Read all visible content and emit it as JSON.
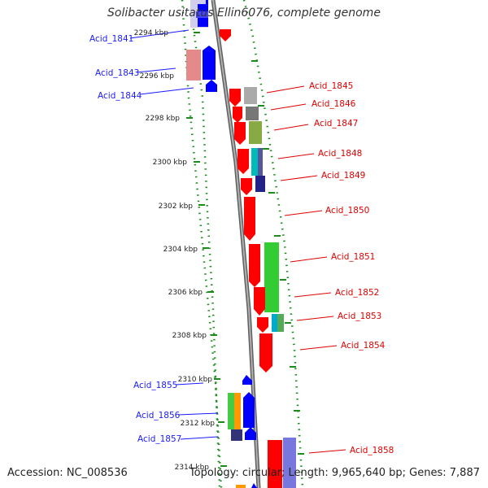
{
  "title": "Solibacter usitatus Ellin6076, complete genome",
  "accession_line": "Accession: NC_008536",
  "summary_line": "Topology: circular; Length: 9,965,640 bp; Genes: 7,887",
  "colors": {
    "left_label": "#1a1aff",
    "right_label": "#e00000",
    "backbone": "#808080",
    "tick": "#1a8c1a",
    "forward_gene": "#0000ff",
    "reverse_gene": "#ff0000"
  },
  "kbp_ticks": [
    "2294 kbp",
    "2296 kbp",
    "2298 kbp",
    "2300 kbp",
    "2302 kbp",
    "2304 kbp",
    "2306 kbp",
    "2308 kbp",
    "2310 kbp",
    "2312 kbp",
    "2314 kbp"
  ],
  "left_genes": [
    {
      "label": "Acid_1841"
    },
    {
      "label": "Acid_1843"
    },
    {
      "label": "Acid_1844"
    },
    {
      "label": "Acid_1855"
    },
    {
      "label": "Acid_1856"
    },
    {
      "label": "Acid_1857"
    }
  ],
  "right_genes": [
    {
      "label": "Acid_1845"
    },
    {
      "label": "Acid_1846"
    },
    {
      "label": "Acid_1847"
    },
    {
      "label": "Acid_1848"
    },
    {
      "label": "Acid_1849"
    },
    {
      "label": "Acid_1850"
    },
    {
      "label": "Acid_1851"
    },
    {
      "label": "Acid_1852"
    },
    {
      "label": "Acid_1853"
    },
    {
      "label": "Acid_1854"
    },
    {
      "label": "Acid_1858"
    }
  ]
}
